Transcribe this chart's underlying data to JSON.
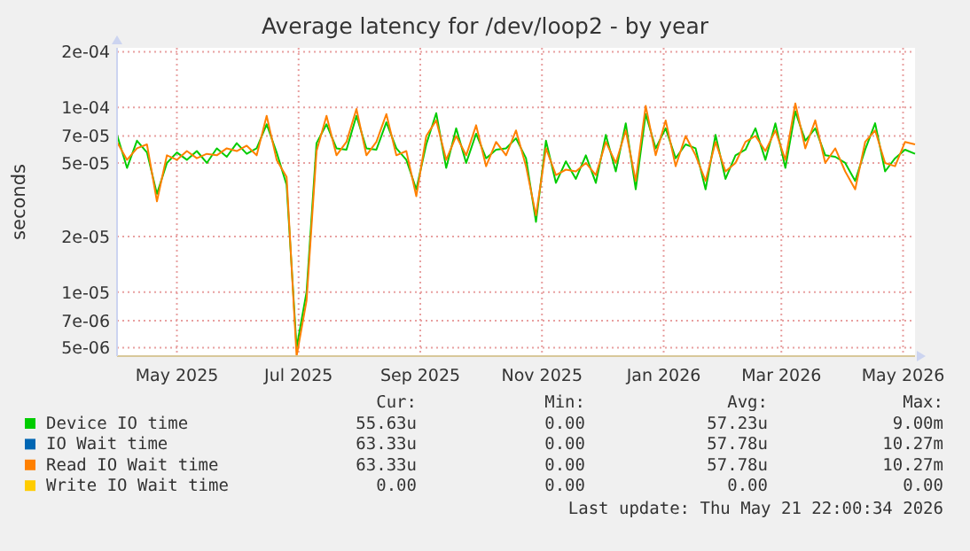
{
  "chart_data": {
    "type": "line",
    "title": "Average latency for /dev/loop2 - by year",
    "ylabel": "seconds",
    "log": "y",
    "grid": true,
    "legend": "bottom",
    "xlim": [
      "2025-04-16",
      "2026-05-21"
    ],
    "xticks": [
      {
        "value": "2025-05-16",
        "label": "May 2025"
      },
      {
        "value": "2025-07-16",
        "label": "Jul 2025"
      },
      {
        "value": "2025-09-15",
        "label": "Sep 2025"
      },
      {
        "value": "2025-11-15",
        "label": "Nov 2025"
      },
      {
        "value": "2026-01-15",
        "label": "Jan 2026"
      },
      {
        "value": "2026-03-15",
        "label": "Mar 2026"
      },
      {
        "value": "2026-05-15",
        "label": "May 2026"
      }
    ],
    "ylim": [
      4.5e-06,
      0.00021
    ],
    "yticks": [
      {
        "value": 5e-06,
        "label": "5e-06"
      },
      {
        "value": 7e-06,
        "label": "7e-06"
      },
      {
        "value": 1e-05,
        "label": "1e-05"
      },
      {
        "value": 2e-05,
        "label": "2e-05"
      },
      {
        "value": 5e-05,
        "label": "5e-05"
      },
      {
        "value": 7e-05,
        "label": "7e-05"
      },
      {
        "value": 0.0001,
        "label": "1e-04"
      },
      {
        "value": 0.0002,
        "label": "2e-04"
      }
    ],
    "x": [
      "2025-04-16",
      "2025-04-21",
      "2025-04-26",
      "2025-05-01",
      "2025-05-06",
      "2025-05-11",
      "2025-05-16",
      "2025-05-21",
      "2025-05-26",
      "2025-05-31",
      "2025-06-05",
      "2025-06-10",
      "2025-06-15",
      "2025-06-20",
      "2025-06-25",
      "2025-06-30",
      "2025-07-05",
      "2025-07-10",
      "2025-07-15",
      "2025-07-20",
      "2025-07-25",
      "2025-07-30",
      "2025-08-04",
      "2025-08-09",
      "2025-08-14",
      "2025-08-19",
      "2025-08-24",
      "2025-08-29",
      "2025-09-03",
      "2025-09-08",
      "2025-09-13",
      "2025-09-18",
      "2025-09-23",
      "2025-09-28",
      "2025-10-03",
      "2025-10-08",
      "2025-10-13",
      "2025-10-18",
      "2025-10-23",
      "2025-10-28",
      "2025-11-02",
      "2025-11-07",
      "2025-11-12",
      "2025-11-17",
      "2025-11-22",
      "2025-11-27",
      "2025-12-02",
      "2025-12-07",
      "2025-12-12",
      "2025-12-17",
      "2025-12-22",
      "2025-12-27",
      "2026-01-01",
      "2026-01-06",
      "2026-01-11",
      "2026-01-16",
      "2026-01-21",
      "2026-01-26",
      "2026-01-31",
      "2026-02-05",
      "2026-02-10",
      "2026-02-15",
      "2026-02-20",
      "2026-02-25",
      "2026-03-02",
      "2026-03-07",
      "2026-03-12",
      "2026-03-17",
      "2026-03-22",
      "2026-03-27",
      "2026-04-01",
      "2026-04-06",
      "2026-04-11",
      "2026-04-16",
      "2026-04-21",
      "2026-04-26",
      "2026-05-01",
      "2026-05-06",
      "2026-05-11",
      "2026-05-16",
      "2026-05-21"
    ],
    "series": [
      {
        "name": "Device IO time",
        "color": "#00cc00",
        "values": [
          7.1e-05,
          4.7e-05,
          6.6e-05,
          5.7e-05,
          3.4e-05,
          5e-05,
          5.7e-05,
          5.2e-05,
          5.8e-05,
          5e-05,
          6e-05,
          5.4e-05,
          6.4e-05,
          5.6e-05,
          6e-05,
          8.1e-05,
          5.7e-05,
          3.8e-05,
          5e-06,
          1e-05,
          6.4e-05,
          8.1e-05,
          6e-05,
          5.9e-05,
          9e-05,
          6e-05,
          5.9e-05,
          8.3e-05,
          6e-05,
          5.2e-05,
          3.6e-05,
          6.3e-05,
          9.3e-05,
          4.7e-05,
          7.7e-05,
          5e-05,
          7.2e-05,
          5.3e-05,
          5.9e-05,
          6e-05,
          6.8e-05,
          5.3e-05,
          2.4e-05,
          6.6e-05,
          3.9e-05,
          5.1e-05,
          4.1e-05,
          5.5e-05,
          3.9e-05,
          7.1e-05,
          4.5e-05,
          8.2e-05,
          3.6e-05,
          9.2e-05,
          6e-05,
          7.7e-05,
          5.3e-05,
          6.3e-05,
          6e-05,
          3.6e-05,
          7.1e-05,
          4.1e-05,
          5.5e-05,
          5.9e-05,
          7.7e-05,
          5.2e-05,
          8.2e-05,
          4.7e-05,
          9.5e-05,
          6.6e-05,
          7.7e-05,
          5.5e-05,
          5.4e-05,
          5e-05,
          4e-05,
          5.9e-05,
          8.2e-05,
          4.5e-05,
          5.3e-05,
          5.9e-05,
          5.6e-05
        ]
      },
      {
        "name": "IO Wait time",
        "color": "#0066b3",
        "values": [
          null,
          null,
          null,
          null,
          null,
          null,
          null,
          null,
          null,
          null,
          null,
          null,
          null,
          null,
          null,
          null,
          null,
          null,
          null,
          null,
          null,
          null,
          null,
          null,
          null,
          null,
          null,
          null,
          null,
          null,
          null,
          null,
          null,
          null,
          null,
          null,
          null,
          null,
          null,
          null,
          null,
          null,
          null,
          null,
          null,
          null,
          null,
          null,
          null,
          null,
          null,
          null,
          null,
          null,
          null,
          null,
          null,
          null,
          null,
          null,
          null,
          null,
          null,
          null,
          null,
          null,
          null,
          null,
          null,
          null,
          null,
          null,
          null,
          null,
          null,
          null,
          null,
          null,
          null,
          null,
          null
        ]
      },
      {
        "name": "Read IO Wait time",
        "color": "#ff8000",
        "values": [
          6.5e-05,
          5.2e-05,
          6e-05,
          6.3e-05,
          3.1e-05,
          5.5e-05,
          5.2e-05,
          5.8e-05,
          5.3e-05,
          5.6e-05,
          5.5e-05,
          6e-05,
          5.8e-05,
          6.2e-05,
          5.5e-05,
          9e-05,
          5.2e-05,
          4.2e-05,
          4.5e-06,
          9e-06,
          5.8e-05,
          9e-05,
          5.5e-05,
          6.5e-05,
          9.8e-05,
          5.5e-05,
          6.5e-05,
          9.2e-05,
          5.5e-05,
          5.8e-05,
          3.3e-05,
          7e-05,
          8.5e-05,
          5.2e-05,
          7e-05,
          5.5e-05,
          8e-05,
          4.8e-05,
          6.5e-05,
          5.5e-05,
          7.5e-05,
          4.8e-05,
          2.6e-05,
          6e-05,
          4.3e-05,
          4.6e-05,
          4.5e-05,
          5e-05,
          4.3e-05,
          6.5e-05,
          5e-05,
          7.5e-05,
          4e-05,
          0.000102,
          5.5e-05,
          8.5e-05,
          4.8e-05,
          7e-05,
          5.5e-05,
          4e-05,
          6.5e-05,
          4.5e-05,
          5e-05,
          6.5e-05,
          7e-05,
          5.8e-05,
          7.5e-05,
          5.2e-05,
          0.000105,
          6e-05,
          8.5e-05,
          5e-05,
          6e-05,
          4.5e-05,
          3.6e-05,
          6.5e-05,
          7.5e-05,
          5e-05,
          4.8e-05,
          6.5e-05,
          6.3e-05
        ]
      },
      {
        "name": "Write IO Wait time",
        "color": "#ffcc00",
        "values": [
          null,
          null,
          null,
          null,
          null,
          null,
          null,
          null,
          null,
          null,
          null,
          null,
          null,
          null,
          null,
          null,
          null,
          null,
          null,
          null,
          null,
          null,
          null,
          null,
          null,
          null,
          null,
          null,
          null,
          null,
          null,
          null,
          null,
          null,
          null,
          null,
          null,
          null,
          null,
          null,
          null,
          null,
          null,
          null,
          null,
          null,
          null,
          null,
          null,
          null,
          null,
          null,
          null,
          null,
          null,
          null,
          null,
          null,
          null,
          null,
          null,
          null,
          null,
          null,
          null,
          null,
          null,
          null,
          null,
          null,
          null,
          null,
          null,
          null,
          null,
          null,
          null,
          null,
          null,
          null,
          null
        ]
      }
    ],
    "annotations": [
      "Cur:",
      "Min:",
      "Avg:",
      "Max:",
      "55.63u",
      "0.00",
      "57.23u",
      "9.00m",
      "63.33u",
      "0.00",
      "57.78u",
      "10.27m",
      "63.33u",
      "0.00",
      "57.78u",
      "10.27m",
      "0.00",
      "0.00",
      "0.00",
      "0.00",
      "Last update: Thu May 21 22:00:34 2026"
    ]
  }
}
